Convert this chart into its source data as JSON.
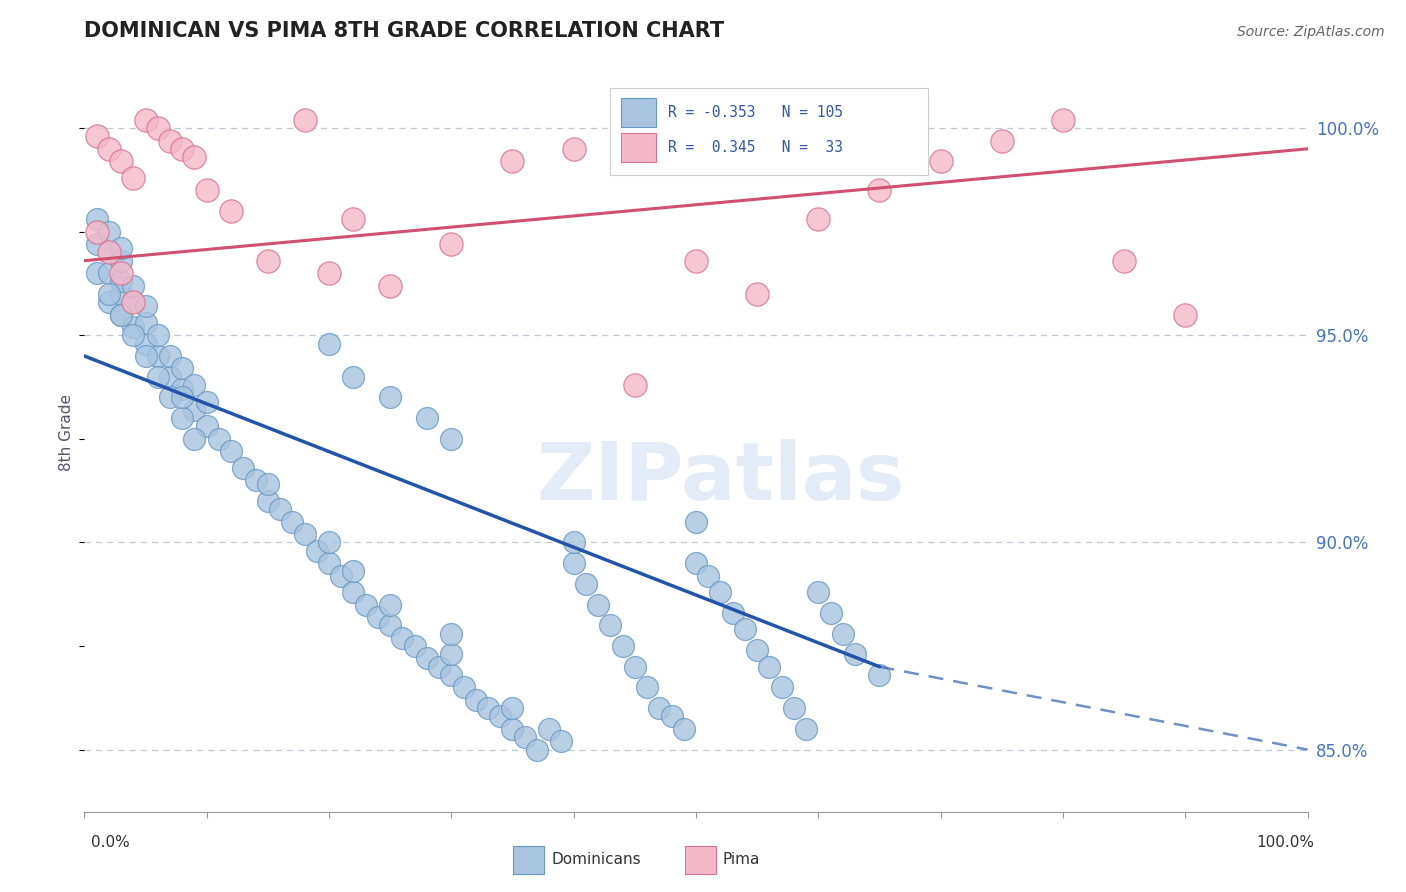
{
  "title": "DOMINICAN VS PIMA 8TH GRADE CORRELATION CHART",
  "source": "Source: ZipAtlas.com",
  "ylabel": "8th Grade",
  "right_ytick_labels": [
    "85.0%",
    "90.0%",
    "95.0%",
    "100.0%"
  ],
  "right_ytick_vals": [
    85.0,
    90.0,
    95.0,
    100.0
  ],
  "legend_blue_r": -0.353,
  "legend_blue_n": 105,
  "legend_pink_r": 0.345,
  "legend_pink_n": 33,
  "blue_scatter_color": "#a8c4e0",
  "blue_edge_color": "#6899c4",
  "blue_line_color": "#2255aa",
  "pink_scatter_color": "#f5b8c8",
  "pink_edge_color": "#d87090",
  "pink_line_color": "#d05070",
  "watermark_color": "#d0dff0",
  "grid_color": "#c0c8d8",
  "xlim": [
    0.0,
    100.0
  ],
  "ylim": [
    83.5,
    101.8
  ],
  "blue_line_x0": 0.0,
  "blue_line_y0": 94.5,
  "blue_line_x1": 65.0,
  "blue_line_y1": 87.0,
  "blue_dash_x0": 65.0,
  "blue_dash_y0": 87.0,
  "blue_dash_x1": 100.0,
  "blue_dash_y1": 85.0,
  "pink_line_x0": 0.0,
  "pink_line_y0": 96.8,
  "pink_line_x1": 100.0,
  "pink_line_y1": 99.5,
  "blue_x": [
    1,
    1,
    1,
    2,
    2,
    2,
    2,
    3,
    3,
    3,
    3,
    3,
    4,
    4,
    4,
    5,
    5,
    5,
    6,
    6,
    7,
    7,
    8,
    8,
    9,
    9,
    10,
    10,
    11,
    12,
    13,
    14,
    15,
    15,
    16,
    17,
    18,
    19,
    20,
    20,
    21,
    22,
    22,
    23,
    24,
    25,
    25,
    26,
    27,
    28,
    29,
    30,
    30,
    30,
    31,
    32,
    33,
    34,
    35,
    35,
    36,
    37,
    38,
    39,
    40,
    40,
    41,
    42,
    43,
    44,
    45,
    46,
    47,
    48,
    49,
    50,
    50,
    51,
    52,
    53,
    54,
    55,
    56,
    57,
    58,
    59,
    60,
    61,
    62,
    63,
    65,
    20,
    22,
    25,
    28,
    30,
    2,
    3,
    4,
    5,
    6,
    7,
    8,
    8,
    9
  ],
  "blue_y": [
    96.5,
    97.2,
    97.8,
    95.8,
    96.5,
    97.0,
    97.5,
    95.5,
    96.0,
    96.3,
    96.8,
    97.1,
    95.2,
    95.8,
    96.2,
    94.8,
    95.3,
    95.7,
    94.5,
    95.0,
    94.0,
    94.5,
    93.7,
    94.2,
    93.2,
    93.8,
    92.8,
    93.4,
    92.5,
    92.2,
    91.8,
    91.5,
    91.0,
    91.4,
    90.8,
    90.5,
    90.2,
    89.8,
    89.5,
    90.0,
    89.2,
    88.8,
    89.3,
    88.5,
    88.2,
    88.0,
    88.5,
    87.7,
    87.5,
    87.2,
    87.0,
    86.8,
    87.3,
    87.8,
    86.5,
    86.2,
    86.0,
    85.8,
    85.5,
    86.0,
    85.3,
    85.0,
    85.5,
    85.2,
    89.5,
    90.0,
    89.0,
    88.5,
    88.0,
    87.5,
    87.0,
    86.5,
    86.0,
    85.8,
    85.5,
    89.5,
    90.5,
    89.2,
    88.8,
    88.3,
    87.9,
    87.4,
    87.0,
    86.5,
    86.0,
    85.5,
    88.8,
    88.3,
    87.8,
    87.3,
    86.8,
    94.8,
    94.0,
    93.5,
    93.0,
    92.5,
    96.0,
    95.5,
    95.0,
    94.5,
    94.0,
    93.5,
    93.0,
    93.5,
    92.5
  ],
  "pink_x": [
    1,
    2,
    3,
    4,
    5,
    6,
    7,
    8,
    9,
    10,
    12,
    15,
    18,
    20,
    22,
    25,
    30,
    35,
    40,
    45,
    50,
    55,
    60,
    65,
    70,
    75,
    80,
    85,
    90,
    1,
    2,
    3,
    4
  ],
  "pink_y": [
    99.8,
    99.5,
    99.2,
    98.8,
    100.2,
    100.0,
    99.7,
    99.5,
    99.3,
    98.5,
    98.0,
    96.8,
    100.2,
    96.5,
    97.8,
    96.2,
    97.2,
    99.2,
    99.5,
    93.8,
    96.8,
    96.0,
    97.8,
    98.5,
    99.2,
    99.7,
    100.2,
    96.8,
    95.5,
    97.5,
    97.0,
    96.5,
    95.8
  ]
}
